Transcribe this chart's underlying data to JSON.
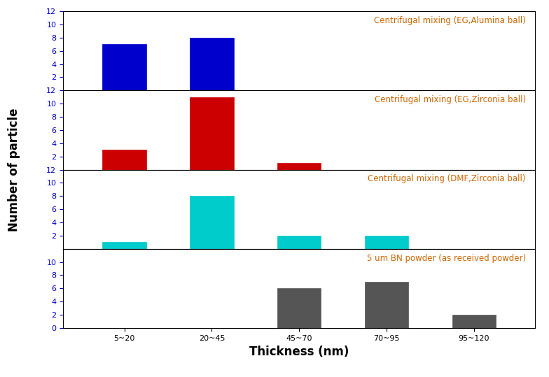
{
  "categories": [
    "5~20",
    "20~45",
    "45~70",
    "70~95",
    "95~120"
  ],
  "panels": [
    {
      "label": "Centrifugal mixing (EG,Alumina ball)",
      "color": "#0000cc",
      "values": [
        7,
        8,
        0,
        0,
        0
      ],
      "ylim": [
        0,
        12
      ],
      "yticks": [
        2,
        4,
        6,
        8,
        10,
        12
      ]
    },
    {
      "label": "Centrifugal mixing (EG,Zirconia ball)",
      "color": "#cc0000",
      "values": [
        3,
        11,
        1,
        0,
        0
      ],
      "ylim": [
        0,
        12
      ],
      "yticks": [
        2,
        4,
        6,
        8,
        10,
        12
      ]
    },
    {
      "label": "Centrifugal mixing (DMF,Zirconia ball)",
      "color": "#00cccc",
      "values": [
        1,
        8,
        2,
        2,
        0
      ],
      "ylim": [
        0,
        12
      ],
      "yticks": [
        2,
        4,
        6,
        8,
        10,
        12
      ]
    },
    {
      "label": "5 um BN powder (as received powder)",
      "color": "#555555",
      "values": [
        0,
        0,
        6,
        7,
        2
      ],
      "ylim": [
        0,
        12
      ],
      "yticks": [
        0,
        2,
        4,
        6,
        8,
        10
      ]
    }
  ],
  "xlabel": "Thickness (nm)",
  "ylabel": "Number of particle",
  "label_color": "#cc6600",
  "tick_color": "#0000cc",
  "label_fontsize": 8.5,
  "xlabel_fontsize": 12,
  "ylabel_fontsize": 12,
  "tick_fontsize": 8,
  "bar_width": 0.5,
  "background_color": "#ffffff"
}
